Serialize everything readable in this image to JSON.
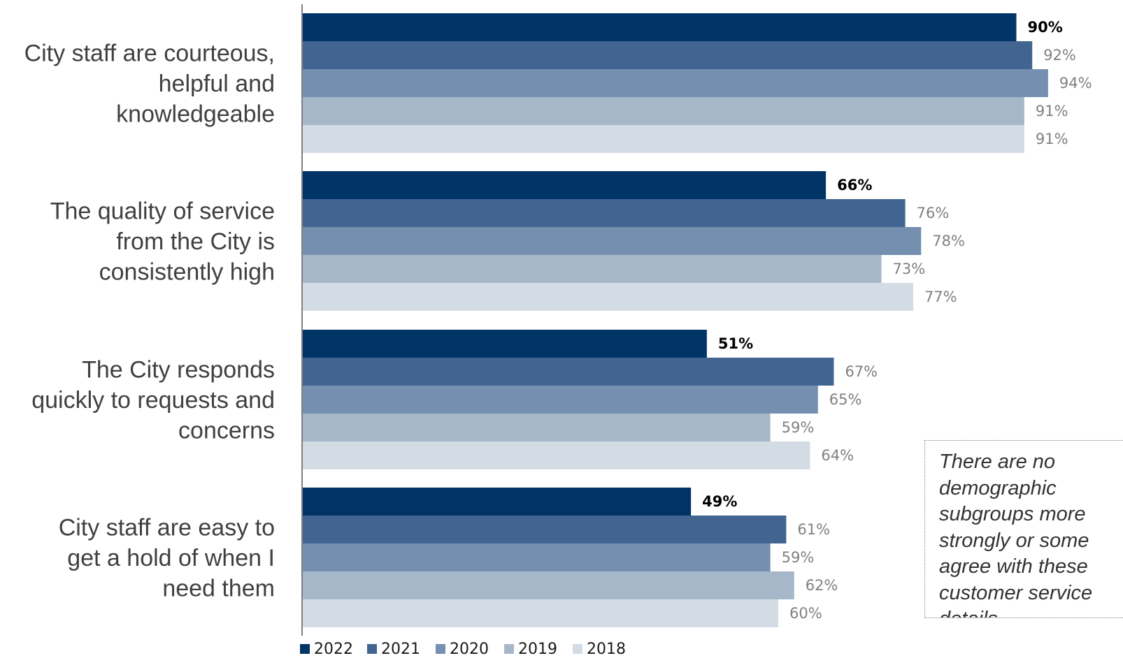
{
  "colors": {
    "2022": "#003366",
    "2021": "#416590",
    "2020": "#748faf",
    "2019": "#a7b7ca",
    "2018": "#d3dbe4",
    "axis": "#7f7f7f",
    "category_text": "#404040",
    "value_text": "#808080",
    "highlight_text": "#000000"
  },
  "note": "There are no\ndemographic\nsubgroups more\nstrongly or some\nagree with these\ncustomer service\ndetails.",
  "chart_data": {
    "type": "bar",
    "orientation": "horizontal",
    "categories": [
      [
        "City staff are courteous,",
        "helpful and",
        "knowledgeable"
      ],
      [
        "The quality of service",
        "from the City is",
        "consistently high"
      ],
      [
        "The City responds",
        "quickly to requests and",
        "concerns"
      ],
      [
        "City staff are easy to",
        "get a hold of when I",
        "need them"
      ]
    ],
    "series": [
      {
        "name": "2022",
        "values": [
          90,
          66,
          51,
          49
        ],
        "labels": [
          "90%",
          "66%",
          "51%",
          "49%"
        ],
        "bold": true
      },
      {
        "name": "2021",
        "values": [
          92,
          76,
          67,
          61
        ],
        "labels": [
          "92%",
          "76%",
          "67%",
          "61%"
        ]
      },
      {
        "name": "2020",
        "values": [
          94,
          78,
          65,
          59
        ],
        "labels": [
          "94%",
          "78%",
          "65%",
          "59%"
        ]
      },
      {
        "name": "2019",
        "values": [
          91,
          73,
          59,
          62
        ],
        "labels": [
          "91%",
          "73%",
          "59%",
          "62%"
        ]
      },
      {
        "name": "2018",
        "values": [
          91,
          77,
          64,
          60
        ],
        "labels": [
          "91%",
          "77%",
          "64%",
          "60%"
        ]
      }
    ],
    "xlim": [
      0,
      100
    ],
    "grid": false,
    "legend": "bottom-left"
  }
}
